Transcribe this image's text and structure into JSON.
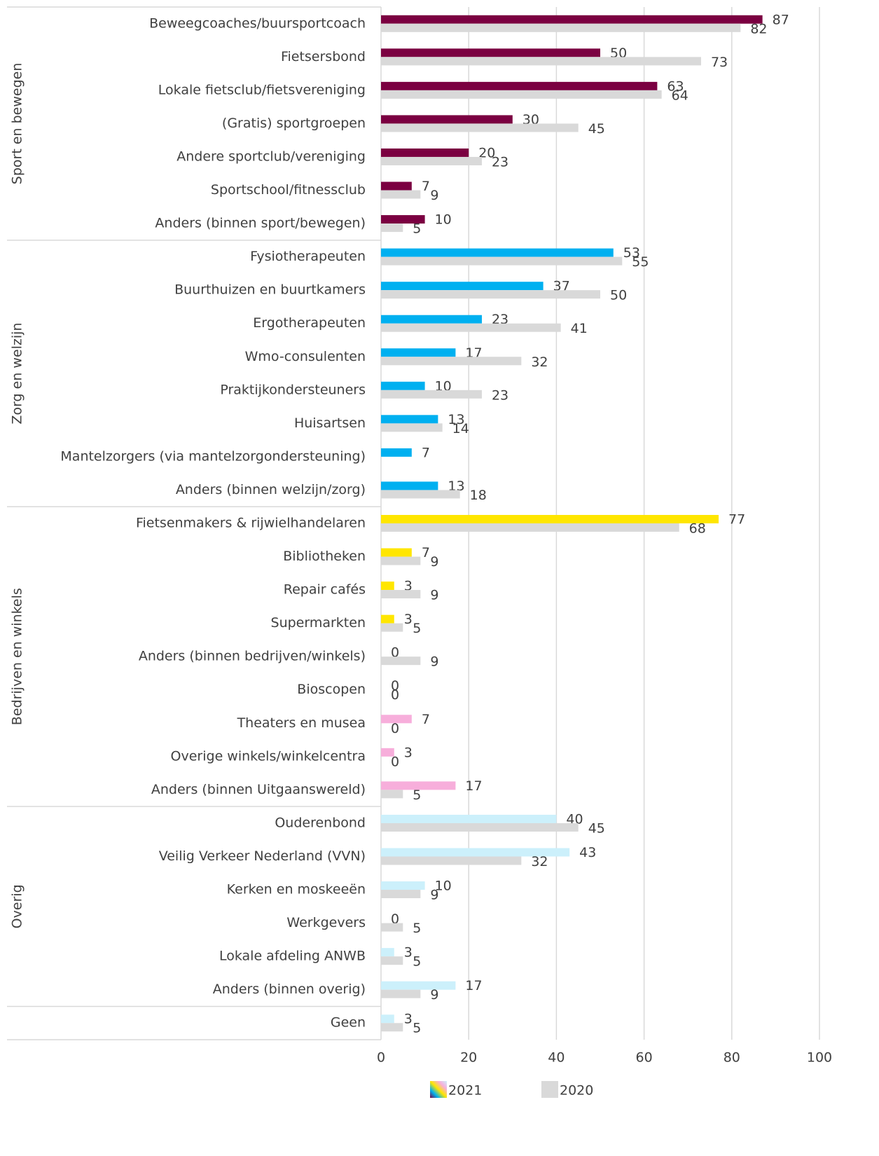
{
  "chart_data": {
    "type": "bar",
    "orientation": "horizontal",
    "categories": [
      "Beweegcoaches/buursportcoach",
      "Fietsersbond",
      "Lokale fietsclub/fietsvereniging",
      "(Gratis) sportgroepen",
      "Andere sportclub/vereniging",
      "Sportschool/fitnessclub",
      "Anders (binnen sport/bewegen)",
      "Fysiotherapeuten",
      "Buurthuizen en buurtkamers",
      "Ergotherapeuten",
      "Wmo-consulenten",
      "Praktijkondersteuners",
      "Huisartsen",
      "Mantelzorgers (via mantelzorgondersteuning)",
      "Anders (binnen welzijn/zorg)",
      "Fietsenmakers & rijwielhandelaren",
      "Bibliotheken",
      "Repair cafés",
      "Supermarkten",
      "Anders (binnen bedrijven/winkels)",
      "Bioscopen",
      "Theaters en musea",
      "Overige winkels/winkelcentra",
      "Anders (binnen Uitgaanswereld)",
      "Ouderenbond",
      "Veilig Verkeer Nederland (VVN)",
      "Kerken en moskeeën",
      "Werkgevers",
      "Lokale afdeling ANWB",
      "Anders (binnen overig)",
      "Geen"
    ],
    "groups": [
      {
        "name": "Sport en bewegen",
        "count": 7
      },
      {
        "name": "Zorg en welzijn",
        "count": 8
      },
      {
        "name": "Bedrijven en winkels",
        "count": 9
      },
      {
        "name": "Overig",
        "count": 6
      }
    ],
    "series": [
      {
        "name": "2021",
        "colors": [
          "#7b0041",
          "#7b0041",
          "#7b0041",
          "#7b0041",
          "#7b0041",
          "#7b0041",
          "#7b0041",
          "#00b0f0",
          "#00b0f0",
          "#00b0f0",
          "#00b0f0",
          "#00b0f0",
          "#00b0f0",
          "#00b0f0",
          "#00b0f0",
          "#ffe600",
          "#ffe600",
          "#ffe600",
          "#ffe600",
          "#ffe600",
          "#ffe600",
          "#f7aedb",
          "#f7aedb",
          "#f7aedb",
          "#ccf0fb",
          "#ccf0fb",
          "#ccf0fb",
          "#ccf0fb",
          "#ccf0fb",
          "#ccf0fb",
          "#ccf0fb"
        ],
        "values": [
          87,
          50,
          63,
          30,
          20,
          7,
          10,
          53,
          37,
          23,
          17,
          10,
          13,
          7,
          13,
          77,
          7,
          3,
          3,
          0,
          0,
          7,
          3,
          17,
          40,
          43,
          10,
          0,
          3,
          17,
          3
        ]
      },
      {
        "name": "2020",
        "color": "#d9d9d9",
        "values": [
          82,
          73,
          64,
          45,
          23,
          9,
          5,
          55,
          50,
          41,
          32,
          23,
          14,
          null,
          18,
          68,
          9,
          9,
          5,
          9,
          0,
          0,
          0,
          5,
          45,
          32,
          9,
          5,
          5,
          9,
          5
        ]
      }
    ],
    "xlim": [
      0,
      100
    ],
    "xticks": [
      0,
      20,
      40,
      60,
      80,
      100
    ],
    "grid": true,
    "legend": "bottom"
  }
}
